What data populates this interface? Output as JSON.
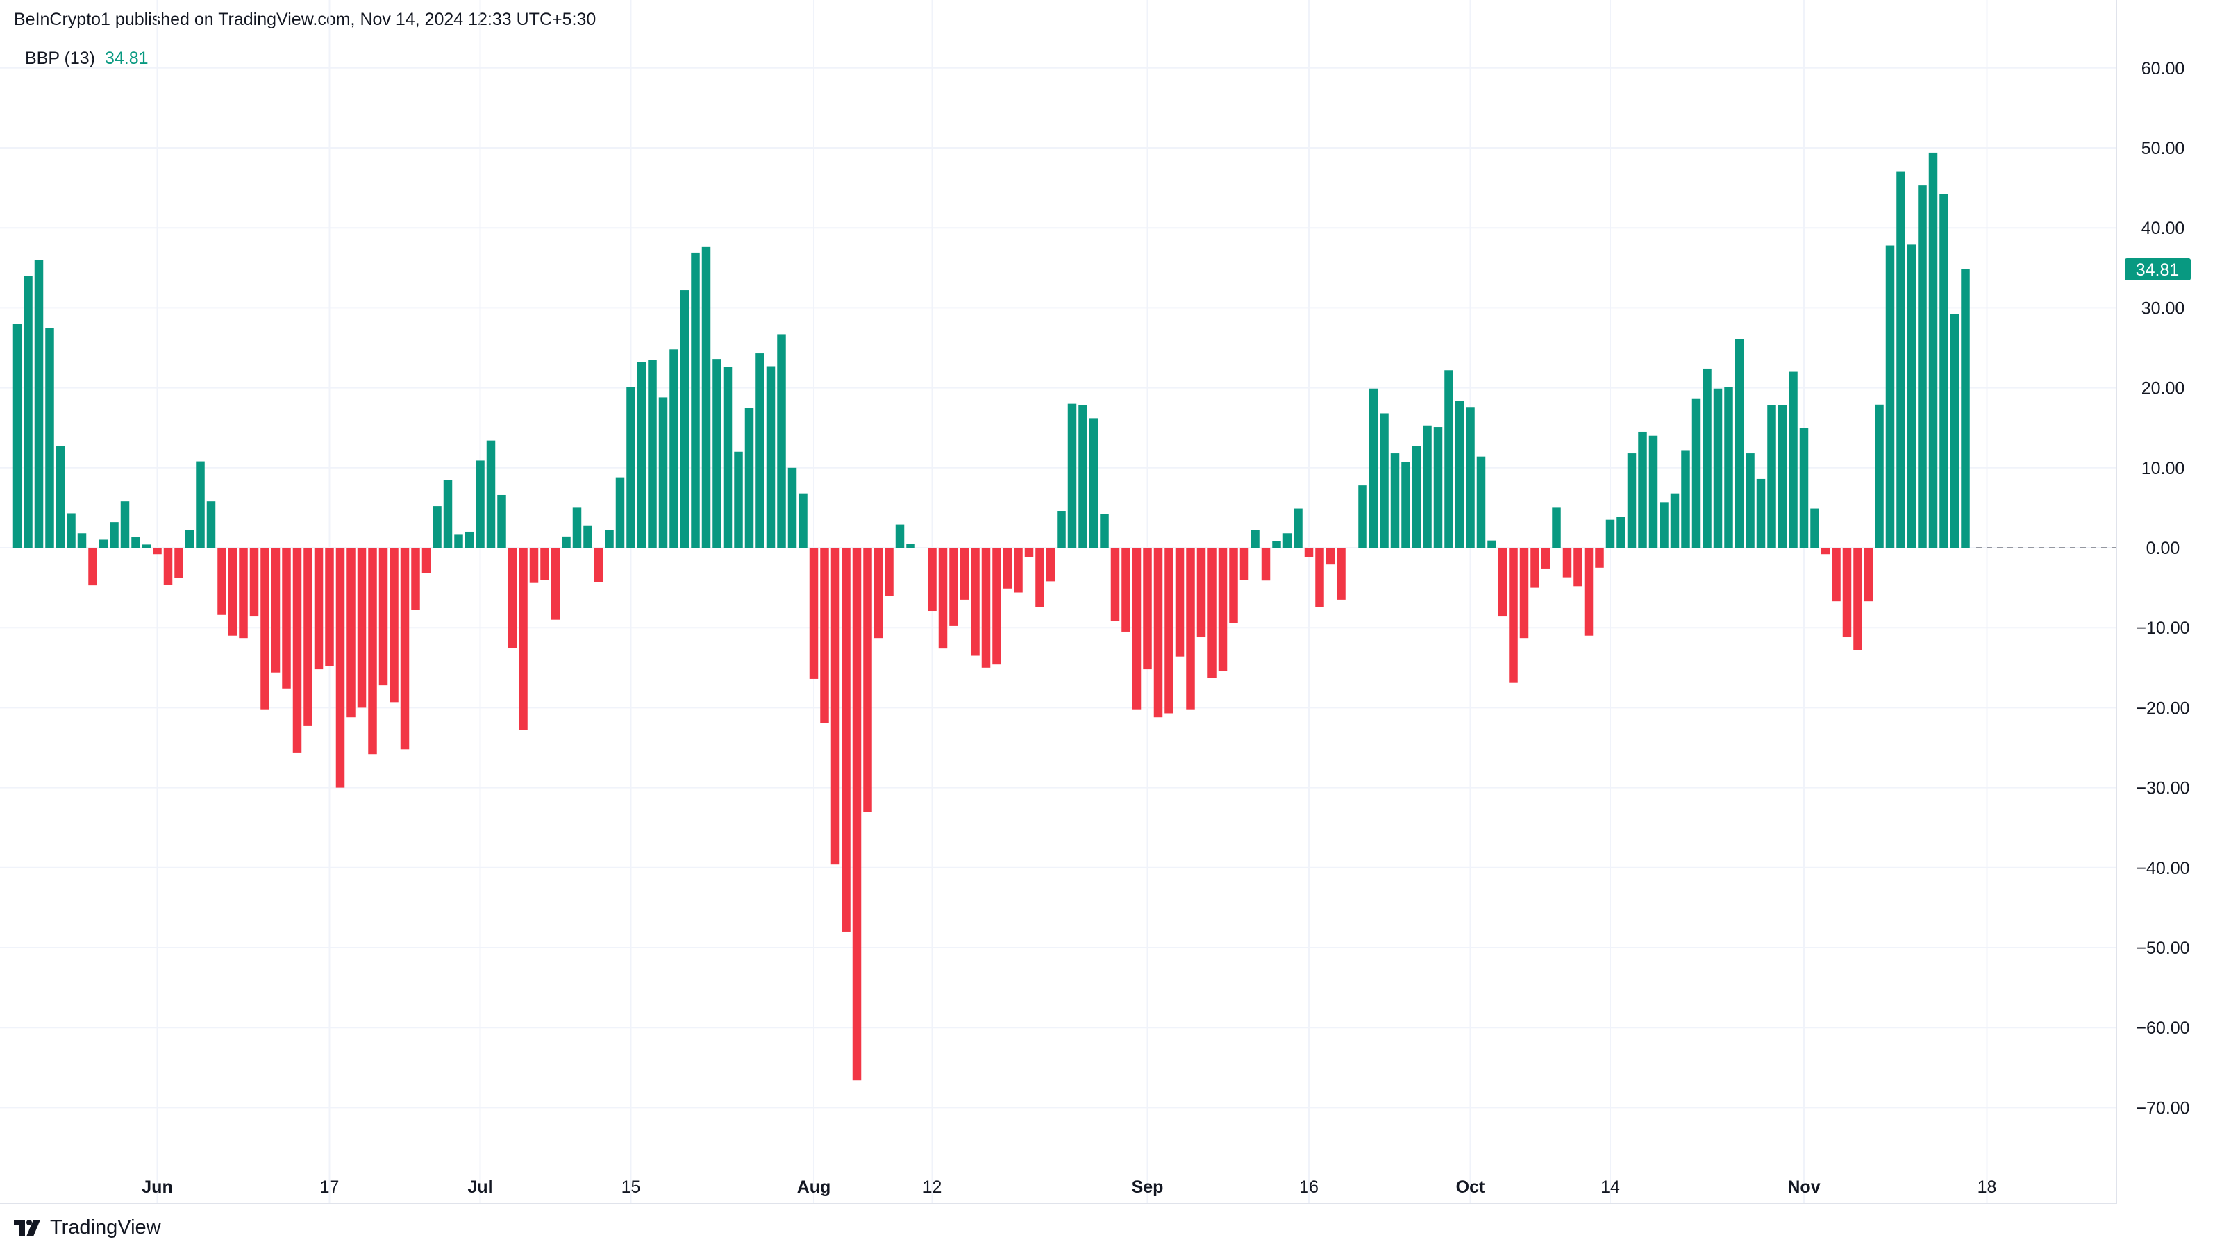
{
  "header": {
    "published": "BeInCrypto1 published on TradingView.com, Nov 14, 2024 12:33 UTC+5:30"
  },
  "legend": {
    "name": "BBP (13)",
    "value": "34.81"
  },
  "footer": {
    "brand": "TradingView"
  },
  "colors": {
    "up": "#089981",
    "down": "#f23645",
    "grid": "#f0f3fa",
    "axis_text": "#131722",
    "zero_line": "#9598a1"
  },
  "chart_data": {
    "type": "bar",
    "title": "BBP (13)",
    "last_value_label": "34.81",
    "ylim": [
      -78,
      66
    ],
    "y_ticks": [
      60,
      50,
      40,
      30,
      20,
      10,
      0,
      -10,
      -20,
      -30,
      -40,
      -50,
      -60,
      -70
    ],
    "y_tick_labels": [
      "60.00",
      "50.00",
      "40.00",
      "30.00",
      "20.00",
      "10.00",
      "0.00",
      "−10.00",
      "−20.00",
      "−30.00",
      "−40.00",
      "−50.00",
      "−60.00",
      "−70.00"
    ],
    "x_ticks": [
      {
        "label": "Jun",
        "index": 13,
        "bold": true
      },
      {
        "label": "17",
        "index": 29,
        "bold": false
      },
      {
        "label": "Jul",
        "index": 43,
        "bold": true
      },
      {
        "label": "15",
        "index": 57,
        "bold": false
      },
      {
        "label": "Aug",
        "index": 74,
        "bold": true
      },
      {
        "label": "12",
        "index": 85,
        "bold": false
      },
      {
        "label": "Sep",
        "index": 105,
        "bold": true
      },
      {
        "label": "16",
        "index": 120,
        "bold": false
      },
      {
        "label": "Oct",
        "index": 135,
        "bold": true
      },
      {
        "label": "14",
        "index": 148,
        "bold": false
      },
      {
        "label": "Nov",
        "index": 166,
        "bold": true
      },
      {
        "label": "18",
        "index": 183,
        "bold": false
      }
    ],
    "values": [
      28,
      34,
      36,
      27.5,
      12.7,
      4.3,
      1.8,
      -4.7,
      1,
      3.2,
      5.8,
      1.3,
      0.4,
      -0.8,
      -4.6,
      -3.8,
      2.2,
      10.8,
      5.8,
      -8.4,
      -11,
      -11.3,
      -8.6,
      -20.2,
      -15.6,
      -17.6,
      -25.6,
      -22.3,
      -15.2,
      -14.8,
      -30,
      -21.2,
      -20,
      -25.8,
      -17.2,
      -19.3,
      -25.2,
      -7.8,
      -3.2,
      5.2,
      8.5,
      1.7,
      2,
      10.9,
      13.4,
      6.6,
      -12.5,
      -22.8,
      -4.4,
      -4,
      -9,
      1.4,
      5,
      2.8,
      -4.3,
      2.2,
      8.8,
      20.1,
      23.2,
      23.5,
      18.8,
      24.8,
      32.2,
      36.9,
      37.6,
      23.6,
      22.6,
      12,
      17.5,
      24.3,
      22.7,
      26.7,
      10,
      6.8,
      -16.4,
      -21.9,
      -39.6,
      -48,
      -66.6,
      -33,
      -11.3,
      -6,
      2.9,
      0.5,
      0,
      -7.9,
      -12.6,
      -9.8,
      -6.5,
      -13.5,
      -15,
      -14.6,
      -5.1,
      -5.6,
      -1.2,
      -7.4,
      -4.2,
      4.6,
      18,
      17.8,
      16.2,
      4.2,
      -9.2,
      -10.5,
      -20.2,
      -15.2,
      -21.2,
      -20.7,
      -13.6,
      -20.2,
      -11.2,
      -16.3,
      -15.4,
      -9.4,
      -4,
      2.2,
      -4.1,
      0.8,
      1.8,
      4.9,
      -1.2,
      -7.4,
      -2.1,
      -6.5,
      0,
      7.8,
      19.9,
      16.8,
      11.8,
      10.7,
      12.7,
      15.3,
      15.1,
      22.2,
      18.4,
      17.6,
      11.4,
      0.9,
      -8.6,
      -16.9,
      -11.3,
      -5,
      -2.6,
      5,
      -3.7,
      -4.8,
      -11,
      -2.5,
      3.5,
      3.9,
      11.8,
      14.5,
      14,
      5.7,
      6.8,
      12.2,
      18.6,
      22.4,
      19.9,
      20.1,
      26.1,
      11.8,
      8.6,
      17.8,
      17.8,
      22,
      15,
      4.9,
      -0.8,
      -6.7,
      -11.2,
      -12.8,
      -6.7,
      17.9,
      37.8,
      47,
      37.9,
      45.3,
      49.4,
      44.2,
      29.2,
      34.81
    ]
  }
}
